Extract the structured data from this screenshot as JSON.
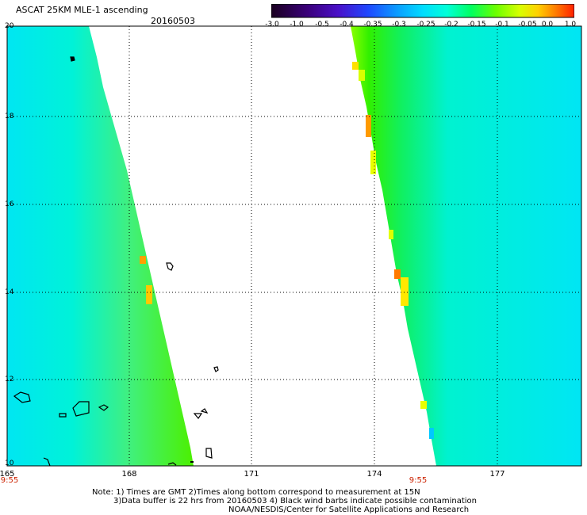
{
  "header": {
    "title": "ASCAT 25KM MLE-1 ascending",
    "date": "20160503"
  },
  "colorbar": {
    "ticks": [
      "-3.0",
      "-1.0",
      "-0.5",
      "-0.4",
      "-0.35",
      "-0.3",
      "-0.25",
      "-0.2",
      "-0.15",
      "-0.1",
      "-0.05",
      "0.0",
      "1.0"
    ],
    "colors": [
      "#1a0020",
      "#3a007a",
      "#4a10c8",
      "#1f48ff",
      "#0aa0ff",
      "#00dcff",
      "#00ffd8",
      "#00ff60",
      "#6aff00",
      "#d8ff00",
      "#ffd000",
      "#ff7a00",
      "#ff2000"
    ]
  },
  "map": {
    "lat_labels": [
      "20",
      "18",
      "16",
      "14",
      "12",
      "10"
    ],
    "lon_labels": [
      "165",
      "168",
      "171",
      "174",
      "177"
    ],
    "time_labels": [
      "9:55",
      "9:55"
    ],
    "lat_range": [
      10,
      20
    ],
    "lon_range": [
      165,
      179.4
    ]
  },
  "footer": {
    "line1": "Note: 1) Times are GMT 2)Times along bottom correspond to measurement at 15N",
    "line2": "3)Data buffer is 22 hrs from 20160503 4) Black wind barbs indicate possible contamination",
    "line3": "NOAA/NESDIS/Center for Satellite Applications and Research"
  }
}
